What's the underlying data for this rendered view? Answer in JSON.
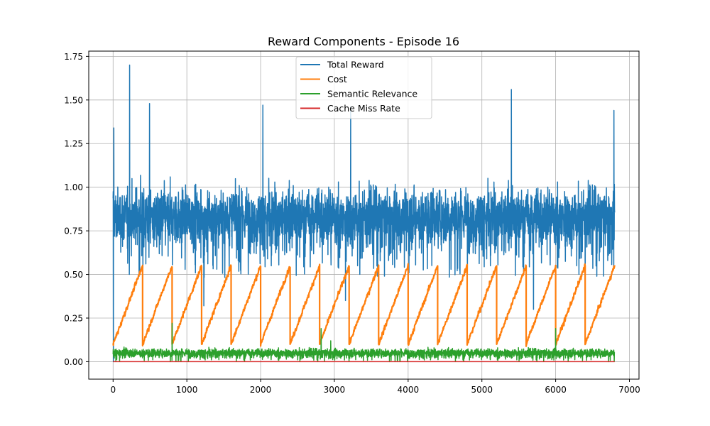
{
  "chart_data": {
    "type": "line",
    "title": "Reward Components - Episode 16",
    "xlabel": "",
    "ylabel": "",
    "xlim": [
      -330,
      7130
    ],
    "ylim": [
      -0.1,
      1.78
    ],
    "x_ticks": [
      0,
      1000,
      2000,
      3000,
      4000,
      5000,
      6000,
      7000
    ],
    "y_ticks": [
      0.0,
      0.25,
      0.5,
      0.75,
      1.0,
      1.25,
      1.5,
      1.75
    ],
    "x_tick_labels": [
      "0",
      "1000",
      "2000",
      "3000",
      "4000",
      "5000",
      "6000",
      "7000"
    ],
    "y_tick_labels": [
      "0.00",
      "0.25",
      "0.50",
      "0.75",
      "1.00",
      "1.25",
      "1.50",
      "1.75"
    ],
    "grid": true,
    "legend_position": "top-center",
    "x_range": [
      0,
      6800
    ],
    "series": [
      {
        "name": "Total Reward",
        "color": "#1f77b4",
        "typical_center": 0.83,
        "typical_band": [
          0.55,
          1.12
        ],
        "peaks": [
          [
            10,
            1.34
          ],
          [
            225,
            1.7
          ],
          [
            495,
            1.48
          ],
          [
            2030,
            1.47
          ],
          [
            3220,
            1.46
          ],
          [
            5400,
            1.56
          ],
          [
            6790,
            1.44
          ]
        ],
        "troughs": [
          [
            5,
            0.0
          ],
          [
            1230,
            0.32
          ],
          [
            3150,
            0.35
          ],
          [
            5700,
            0.3
          ],
          [
            6400,
            0.4
          ]
        ]
      },
      {
        "name": "Cost",
        "color": "#ff7f0e",
        "pattern": "sawtooth",
        "period": 400,
        "ramp_start": 0.1,
        "ramp_end": 0.55,
        "reset_x": [
          400,
          800,
          1200,
          1600,
          2000,
          2400,
          2800,
          3200,
          3600,
          4000,
          4400,
          4800,
          5200,
          5600,
          6000,
          6400
        ]
      },
      {
        "name": "Semantic Relevance",
        "color": "#2ca02c",
        "typical_center": 0.05,
        "typical_band": [
          0.01,
          0.1
        ],
        "peaks": [
          [
            2950,
            0.12
          ],
          [
            800,
            0.22
          ],
          [
            2820,
            0.19
          ],
          [
            6000,
            0.19
          ]
        ]
      },
      {
        "name": "Cache Miss Rate",
        "color": "#d62728",
        "values_constant": 0.0
      }
    ]
  }
}
